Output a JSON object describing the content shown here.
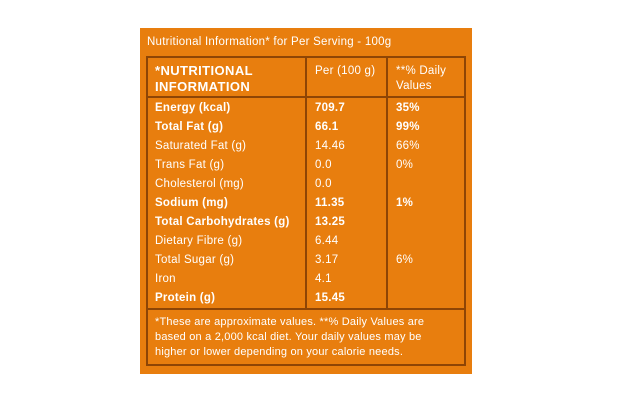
{
  "title": "Nutritional Information* for Per Serving - 100g",
  "table": {
    "headers": {
      "nutrient": "*NUTRITIONAL INFORMATION",
      "per_100g": "Per (100 g)",
      "daily_values": "**% Daily Values"
    },
    "rows": [
      {
        "label": "Energy (kcal)",
        "per_100g": "709.7",
        "daily_value": "35%",
        "bold": true
      },
      {
        "label": "Total Fat (g)",
        "per_100g": "66.1",
        "daily_value": "99%",
        "bold": true
      },
      {
        "label": "Saturated Fat (g)",
        "per_100g": "14.46",
        "daily_value": "66%",
        "bold": false
      },
      {
        "label": "Trans Fat (g)",
        "per_100g": "0.0",
        "daily_value": "0%",
        "bold": false
      },
      {
        "label": "Cholesterol (mg)",
        "per_100g": "0.0",
        "daily_value": "",
        "bold": false
      },
      {
        "label": "Sodium (mg)",
        "per_100g": "11.35",
        "daily_value": "1%",
        "bold": true
      },
      {
        "label": "Total Carbohydrates (g)",
        "per_100g": "13.25",
        "daily_value": "",
        "bold": true
      },
      {
        "label": "Dietary Fibre (g)",
        "per_100g": "6.44",
        "daily_value": "",
        "bold": false
      },
      {
        "label": "Total Sugar (g)",
        "per_100g": "3.17",
        "daily_value": "6%",
        "bold": false
      },
      {
        "label": "Iron",
        "per_100g": "4.1",
        "daily_value": "",
        "bold": false
      },
      {
        "label": "Protein (g)",
        "per_100g": "15.45",
        "daily_value": "",
        "bold": true
      }
    ]
  },
  "footnote": "*These are approximate values.  **% Daily Values are based on a 2,000 kcal diet. Your daily values may be higher or lower depending on your calorie needs.",
  "colors": {
    "background": "#E87E0E",
    "border": "#8E4505",
    "text": "#FFFFFF",
    "page": "#FFFFFF"
  }
}
